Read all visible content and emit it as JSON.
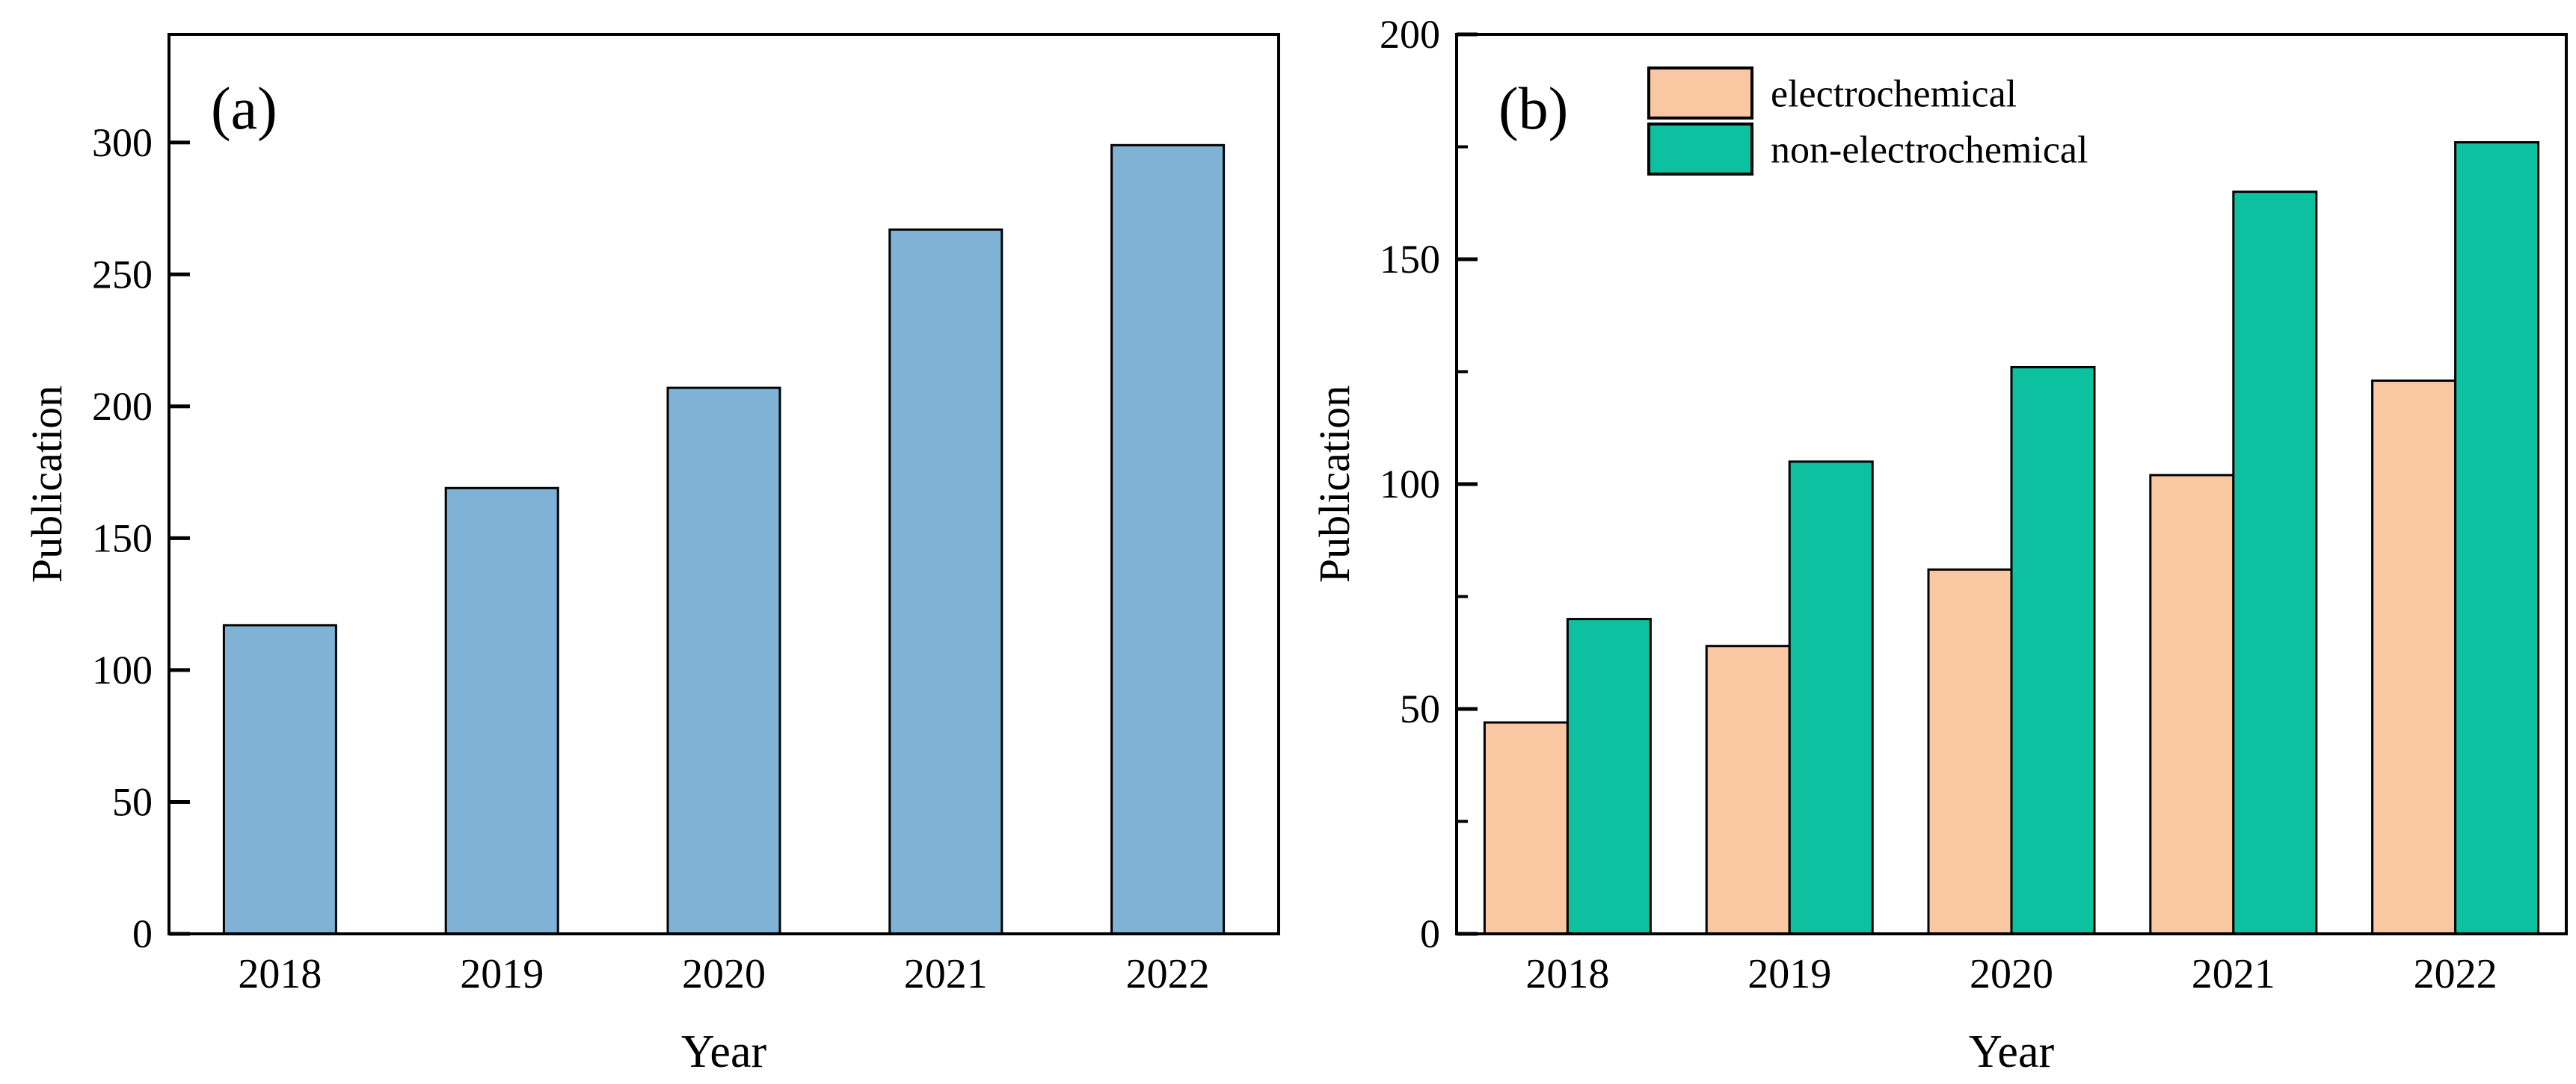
{
  "figure": {
    "background": "#ffffff",
    "axis_color": "#000000",
    "text_color": "#000000"
  },
  "chart_data": [
    {
      "type": "bar",
      "panel_label": "(a)",
      "title": "",
      "xlabel": "Year",
      "ylabel": "Publication",
      "categories": [
        "2018",
        "2019",
        "2020",
        "2021",
        "2022"
      ],
      "series": [
        {
          "name": "publications",
          "values": [
            117,
            169,
            207,
            267,
            299
          ],
          "color": "#7FB2D5"
        }
      ],
      "ylim": [
        0,
        341
      ],
      "yticks": [
        0,
        50,
        100,
        150,
        200,
        250,
        300
      ],
      "minor_tick_step": null,
      "grid": false,
      "legend": null
    },
    {
      "type": "bar",
      "panel_label": "(b)",
      "title": "",
      "xlabel": "Year",
      "ylabel": "Publication",
      "categories": [
        "2018",
        "2019",
        "2020",
        "2021",
        "2022"
      ],
      "series": [
        {
          "name": "electrochemical",
          "values": [
            47,
            64,
            81,
            102,
            123
          ],
          "color": "#F9C7A2"
        },
        {
          "name": "non-electrochemical",
          "values": [
            70,
            105,
            126,
            165,
            176
          ],
          "color": "#0CC0A0"
        }
      ],
      "ylim": [
        0,
        200
      ],
      "yticks": [
        0,
        50,
        100,
        150,
        200
      ],
      "minor_tick_step": 25,
      "grid": false,
      "legend": {
        "position": "top-left",
        "entries": [
          "electrochemical",
          "non-electrochemical"
        ]
      }
    }
  ]
}
